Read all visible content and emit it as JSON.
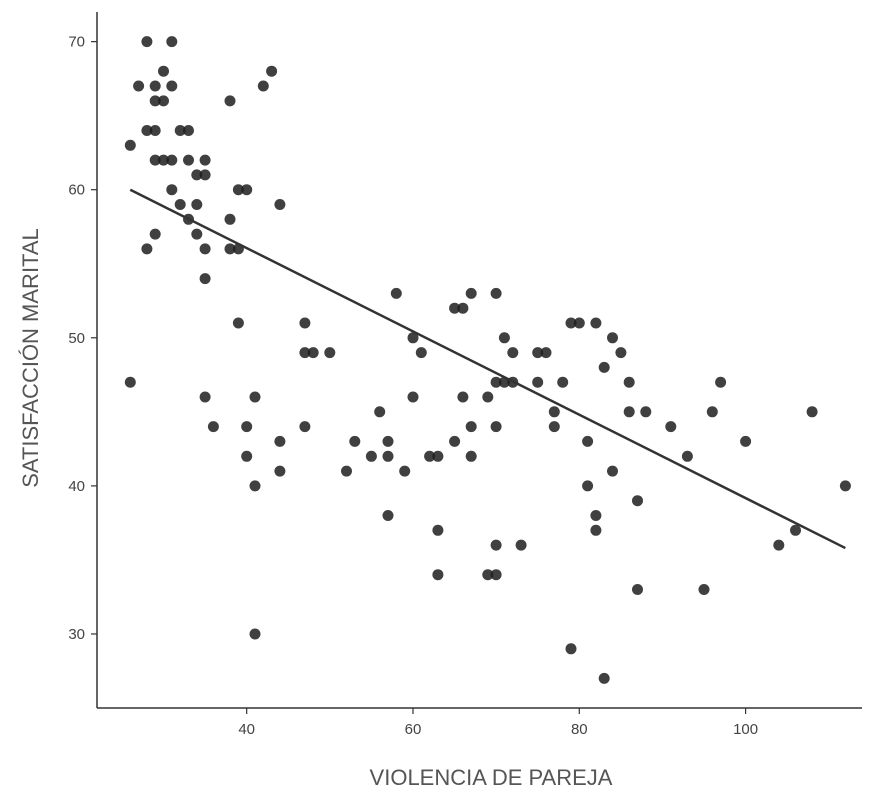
{
  "chart_data": {
    "type": "scatter",
    "title": "",
    "xlabel": "VIOLENCIA DE PAREJA",
    "ylabel": "SATISFACCIÓN MARITAL",
    "xlim": [
      22,
      114
    ],
    "ylim": [
      25,
      72
    ],
    "xticks": [
      40,
      60,
      80,
      100
    ],
    "yticks": [
      30,
      40,
      50,
      60,
      70
    ],
    "grid": false,
    "legend": "none",
    "colors": {
      "point": "#1f1f1f",
      "line": "#333333",
      "axis": "#333333"
    },
    "trendline": {
      "x": [
        26,
        112
      ],
      "y": [
        60,
        35.8
      ]
    },
    "points": [
      [
        26,
        63
      ],
      [
        26,
        47
      ],
      [
        27,
        67
      ],
      [
        28,
        70
      ],
      [
        28,
        64
      ],
      [
        28,
        56
      ],
      [
        29,
        67
      ],
      [
        29,
        66
      ],
      [
        29,
        64
      ],
      [
        29,
        62
      ],
      [
        29,
        57
      ],
      [
        30,
        68
      ],
      [
        30,
        66
      ],
      [
        30,
        62
      ],
      [
        31,
        70
      ],
      [
        31,
        67
      ],
      [
        31,
        62
      ],
      [
        31,
        60
      ],
      [
        32,
        64
      ],
      [
        32,
        59
      ],
      [
        33,
        64
      ],
      [
        33,
        62
      ],
      [
        33,
        58
      ],
      [
        34,
        61
      ],
      [
        34,
        59
      ],
      [
        34,
        57
      ],
      [
        35,
        62
      ],
      [
        35,
        61
      ],
      [
        35,
        56
      ],
      [
        35,
        54
      ],
      [
        35,
        46
      ],
      [
        36,
        44
      ],
      [
        38,
        66
      ],
      [
        38,
        58
      ],
      [
        38,
        56
      ],
      [
        39,
        60
      ],
      [
        39,
        56
      ],
      [
        39,
        51
      ],
      [
        40,
        60
      ],
      [
        40,
        44
      ],
      [
        40,
        42
      ],
      [
        41,
        46
      ],
      [
        41,
        40
      ],
      [
        41,
        30
      ],
      [
        42,
        67
      ],
      [
        43,
        68
      ],
      [
        44,
        59
      ],
      [
        44,
        43
      ],
      [
        44,
        41
      ],
      [
        47,
        51
      ],
      [
        47,
        49
      ],
      [
        47,
        44
      ],
      [
        48,
        49
      ],
      [
        50,
        49
      ],
      [
        52,
        41
      ],
      [
        53,
        43
      ],
      [
        55,
        42
      ],
      [
        56,
        45
      ],
      [
        57,
        43
      ],
      [
        57,
        42
      ],
      [
        57,
        38
      ],
      [
        58,
        53
      ],
      [
        59,
        41
      ],
      [
        60,
        50
      ],
      [
        60,
        46
      ],
      [
        61,
        49
      ],
      [
        62,
        42
      ],
      [
        63,
        42
      ],
      [
        63,
        37
      ],
      [
        63,
        34
      ],
      [
        65,
        52
      ],
      [
        65,
        43
      ],
      [
        66,
        52
      ],
      [
        66,
        46
      ],
      [
        67,
        53
      ],
      [
        67,
        44
      ],
      [
        67,
        42
      ],
      [
        69,
        46
      ],
      [
        69,
        34
      ],
      [
        70,
        53
      ],
      [
        70,
        47
      ],
      [
        70,
        44
      ],
      [
        70,
        36
      ],
      [
        70,
        34
      ],
      [
        71,
        50
      ],
      [
        71,
        47
      ],
      [
        72,
        49
      ],
      [
        72,
        47
      ],
      [
        73,
        36
      ],
      [
        75,
        49
      ],
      [
        75,
        47
      ],
      [
        76,
        49
      ],
      [
        77,
        45
      ],
      [
        77,
        44
      ],
      [
        78,
        47
      ],
      [
        79,
        51
      ],
      [
        79,
        29
      ],
      [
        80,
        51
      ],
      [
        81,
        43
      ],
      [
        81,
        40
      ],
      [
        82,
        51
      ],
      [
        82,
        38
      ],
      [
        82,
        37
      ],
      [
        83,
        48
      ],
      [
        83,
        27
      ],
      [
        84,
        50
      ],
      [
        84,
        41
      ],
      [
        85,
        49
      ],
      [
        86,
        47
      ],
      [
        86,
        45
      ],
      [
        87,
        39
      ],
      [
        87,
        33
      ],
      [
        88,
        45
      ],
      [
        91,
        44
      ],
      [
        93,
        42
      ],
      [
        95,
        33
      ],
      [
        96,
        45
      ],
      [
        97,
        47
      ],
      [
        100,
        43
      ],
      [
        104,
        36
      ],
      [
        106,
        37
      ],
      [
        108,
        45
      ],
      [
        112,
        40
      ]
    ]
  }
}
